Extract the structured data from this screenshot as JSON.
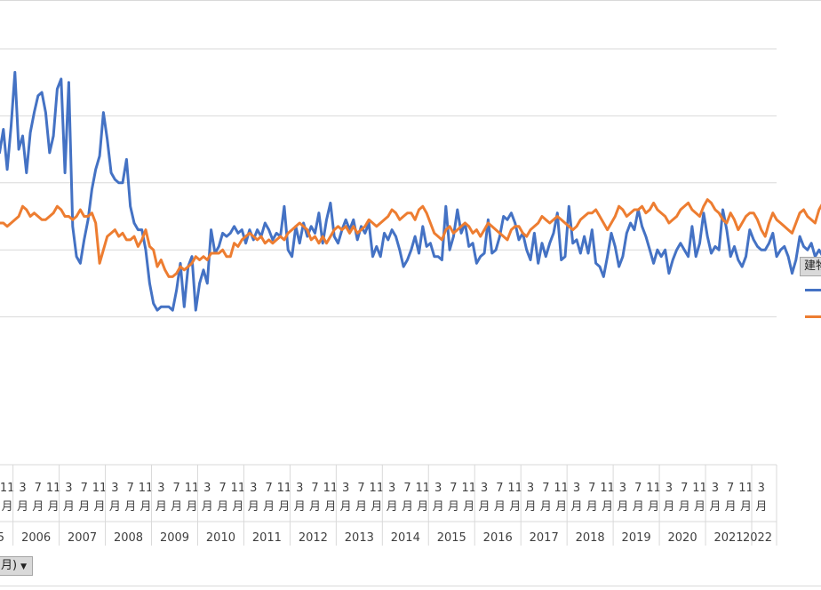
{
  "chart_data": {
    "type": "line",
    "title": "",
    "xlabel": "",
    "ylabel": "",
    "x_start": "2005-03",
    "x_end": "2022-03",
    "ylim": [
      0,
      100
    ],
    "grid": true,
    "legend_position": "right",
    "years": [
      "5",
      "2006",
      "2007",
      "2008",
      "2009",
      "2010",
      "2011",
      "2012",
      "2013",
      "2014",
      "2015",
      "2016",
      "2017",
      "2018",
      "2019",
      "2020",
      "2021",
      "2022"
    ],
    "month_ticks": [
      "3",
      "7",
      "11"
    ],
    "month_suffix": "月",
    "series": [
      {
        "color": "#4472C4",
        "values": [
          88,
          93,
          80,
          69,
          74,
          79,
          69,
          76,
          64,
          77,
          93,
          70,
          74,
          63,
          75,
          81,
          86,
          87,
          81,
          69,
          74,
          88,
          91,
          63,
          90,
          47,
          38,
          36,
          43,
          49,
          58,
          64,
          68,
          81,
          73,
          63,
          61,
          60,
          60,
          67,
          53,
          48,
          46,
          46,
          40,
          30,
          24,
          22,
          23,
          23,
          23,
          22,
          28,
          36,
          23,
          35,
          38,
          22,
          30,
          34,
          30,
          46,
          39,
          41,
          45,
          44,
          45,
          47,
          45,
          46,
          42,
          46,
          43,
          46,
          44,
          48,
          46,
          43,
          45,
          44,
          53,
          40,
          38,
          47,
          42,
          48,
          44,
          47,
          45,
          51,
          42,
          49,
          54,
          44,
          42,
          46,
          49,
          46,
          49,
          43,
          47,
          45,
          48,
          38,
          41,
          38,
          45,
          43,
          46,
          44,
          40,
          35,
          37,
          40,
          44,
          39,
          47,
          41,
          42,
          38,
          38,
          37,
          53,
          40,
          44,
          52,
          45,
          48,
          41,
          42,
          36,
          38,
          39,
          49,
          39,
          40,
          44,
          50,
          49,
          51,
          48,
          43,
          45,
          40,
          37,
          45,
          36,
          42,
          38,
          42,
          45,
          51,
          37,
          38,
          53,
          42,
          43,
          39,
          44,
          39,
          46,
          36,
          35,
          32,
          38,
          45,
          41,
          35,
          38,
          45,
          48,
          46,
          52,
          47,
          44,
          40,
          36,
          40,
          38,
          40,
          33,
          37,
          40,
          42,
          40,
          38,
          47,
          38,
          42,
          51,
          44,
          39,
          41,
          40,
          52,
          46,
          38,
          41,
          37,
          35,
          38,
          46,
          43,
          41,
          40,
          40,
          42,
          45,
          38,
          40,
          41,
          38,
          33,
          37,
          44,
          41,
          40,
          42,
          38,
          40,
          38,
          34,
          37,
          31,
          40,
          44,
          45,
          46,
          41,
          38,
          33,
          39,
          40,
          39,
          39,
          36,
          36,
          43,
          47,
          52
        ]
      },
      {
        "color": "#ED7D31",
        "values": [
          51,
          50,
          48,
          49,
          49,
          48,
          48,
          48,
          47,
          48,
          49,
          50,
          53,
          52,
          50,
          51,
          50,
          49,
          49,
          50,
          51,
          53,
          52,
          50,
          50,
          49,
          50,
          52,
          50,
          50,
          51,
          48,
          36,
          40,
          44,
          45,
          46,
          44,
          45,
          43,
          43,
          44,
          41,
          43,
          46,
          41,
          40,
          35,
          37,
          34,
          32,
          32,
          33,
          35,
          34,
          35,
          36,
          38,
          37,
          38,
          37,
          39,
          39,
          39,
          40,
          38,
          38,
          42,
          41,
          43,
          44,
          45,
          44,
          43,
          44,
          42,
          43,
          42,
          43,
          44,
          43,
          45,
          46,
          47,
          48,
          47,
          46,
          43,
          44,
          42,
          44,
          42,
          44,
          46,
          47,
          46,
          47,
          45,
          47,
          45,
          46,
          47,
          49,
          48,
          47,
          48,
          49,
          50,
          52,
          51,
          49,
          50,
          51,
          51,
          49,
          52,
          53,
          51,
          48,
          45,
          44,
          43,
          46,
          47,
          45,
          46,
          47,
          48,
          47,
          45,
          46,
          44,
          46,
          48,
          47,
          46,
          45,
          44,
          43,
          46,
          47,
          47,
          45,
          44,
          46,
          47,
          48,
          50,
          49,
          48,
          49,
          50,
          49,
          48,
          47,
          46,
          47,
          49,
          50,
          51,
          51,
          52,
          50,
          48,
          46,
          48,
          50,
          53,
          52,
          50,
          51,
          52,
          52,
          53,
          51,
          52,
          54,
          52,
          51,
          50,
          48,
          49,
          50,
          52,
          53,
          54,
          52,
          51,
          50,
          53,
          55,
          54,
          52,
          51,
          49,
          48,
          51,
          49,
          46,
          48,
          50,
          51,
          51,
          49,
          46,
          44,
          48,
          51,
          49,
          48,
          47,
          46,
          45,
          48,
          51,
          52,
          50,
          49,
          48,
          52,
          54,
          55,
          54,
          53,
          51,
          50,
          52,
          53,
          54,
          52,
          51,
          49,
          45,
          48,
          50,
          54
        ]
      }
    ]
  },
  "legend": {
    "header": "建物",
    "colors": [
      "#4472C4",
      "#ED7D31"
    ]
  },
  "axis_button": {
    "label": "月)",
    "arrow": "▼"
  }
}
